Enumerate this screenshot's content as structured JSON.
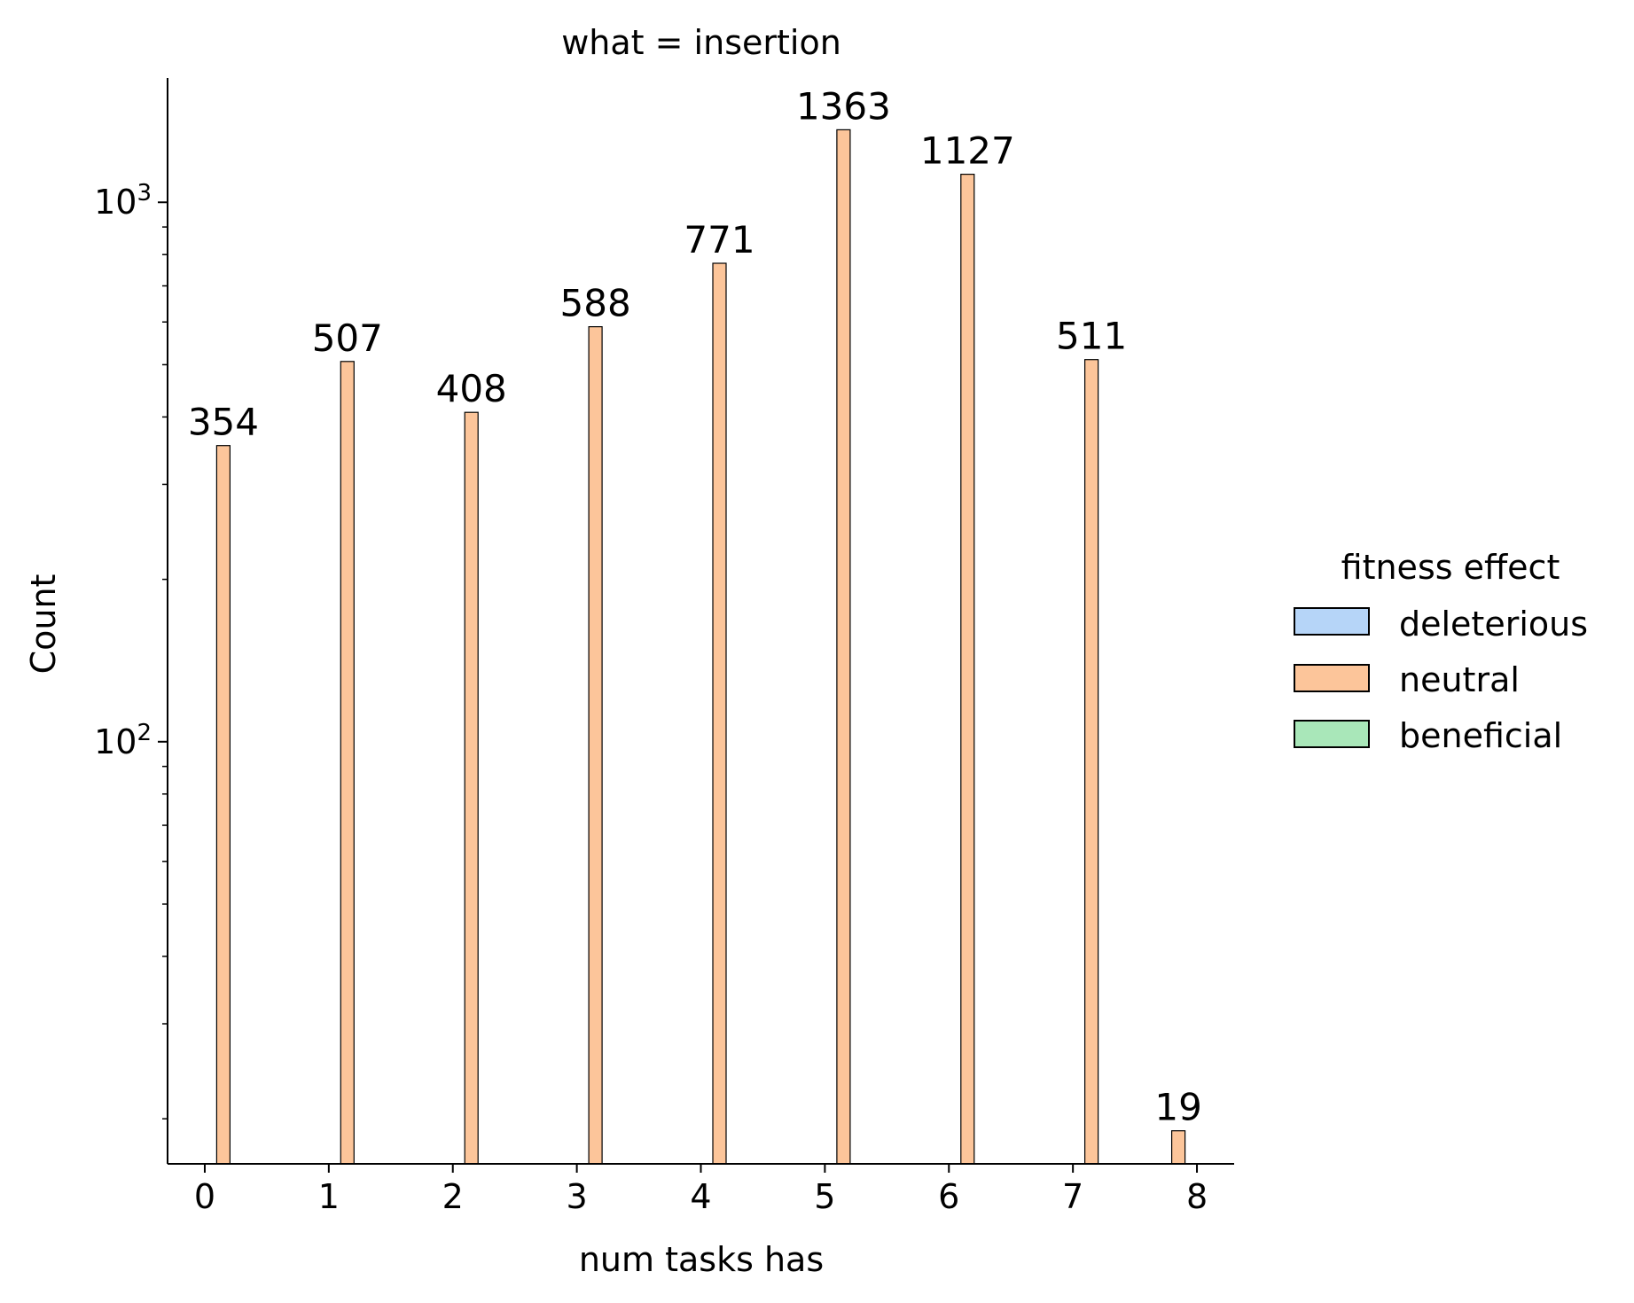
{
  "chart_data": {
    "type": "bar",
    "title": "what = insertion",
    "xlabel": "num tasks has",
    "ylabel": "Count",
    "yscale": "log",
    "ylim": [
      16.5,
      1700
    ],
    "xlim": [
      -0.3,
      8.3
    ],
    "x_ticks": [
      "0",
      "1",
      "2",
      "3",
      "4",
      "5",
      "6",
      "7",
      "8"
    ],
    "y_ticks": [
      {
        "value": 100,
        "base": "10",
        "exp": "2"
      },
      {
        "value": 1000,
        "base": "10",
        "exp": "3"
      }
    ],
    "grid": false,
    "legend_position": "right",
    "legend": {
      "title": "fitness effect",
      "entries": [
        {
          "label": "deleterious",
          "color": "#b6d5f8"
        },
        {
          "label": "neutral",
          "color": "#fcc59a"
        },
        {
          "label": "beneficial",
          "color": "#a9e7b9"
        }
      ]
    },
    "series": [
      {
        "name": "neutral",
        "color": "#fcc59a",
        "x": [
          0.15,
          1.15,
          2.15,
          3.15,
          4.15,
          5.15,
          6.15,
          7.15,
          7.85
        ],
        "values": [
          354,
          507,
          408,
          588,
          771,
          1363,
          1127,
          511,
          19
        ],
        "labels": [
          "354",
          "507",
          "408",
          "588",
          "771",
          "1363",
          "1127",
          "511",
          "19"
        ]
      }
    ]
  }
}
